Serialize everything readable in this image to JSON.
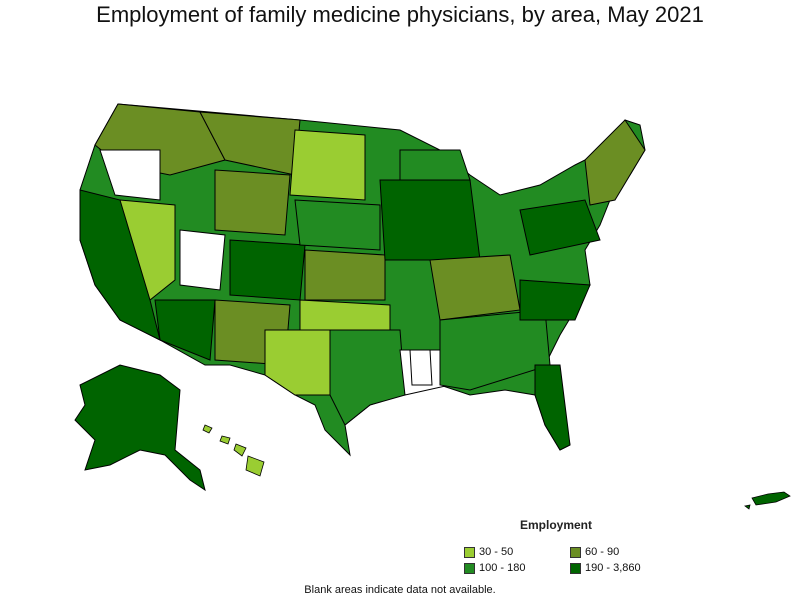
{
  "title": "Employment of family medicine physicians, by area, May 2021",
  "legend": {
    "title": "Employment",
    "items": [
      {
        "label": "30 - 50",
        "color": "#9acd32"
      },
      {
        "label": "60 - 90",
        "color": "#6b8e23"
      },
      {
        "label": "100 - 180",
        "color": "#228b22"
      },
      {
        "label": "190 - 3,860",
        "color": "#006400"
      }
    ]
  },
  "footnote": "Blank areas indicate data not available.",
  "colors": {
    "c1": "#9acd32",
    "c2": "#6b8e23",
    "c3": "#228b22",
    "c4": "#006400",
    "blank": "#ffffff",
    "border": "#000000"
  }
}
